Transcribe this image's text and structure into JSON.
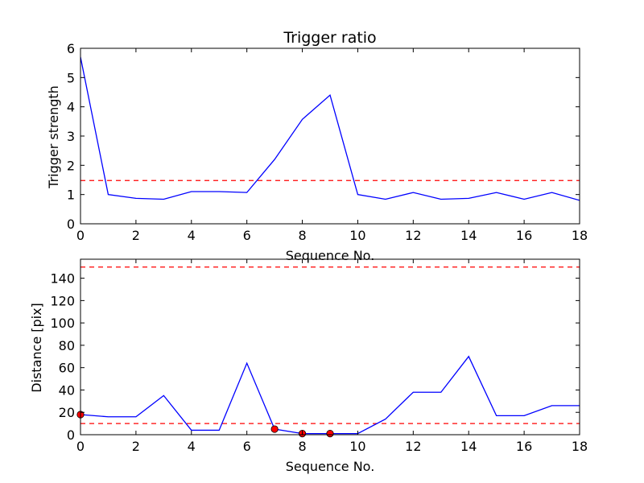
{
  "colors": {
    "series_line": "#0000ff",
    "threshold_line": "#ff0000",
    "marker_fill": "#ff0000",
    "marker_edge": "#000000",
    "axes": "#000000",
    "background": "#ffffff"
  },
  "chart_data": [
    {
      "type": "line",
      "title": "Trigger ratio",
      "xlabel": "Sequence No.",
      "ylabel": "Trigger strength",
      "xlim": [
        0,
        18
      ],
      "ylim": [
        0,
        6
      ],
      "xticks": [
        0,
        2,
        4,
        6,
        8,
        10,
        12,
        14,
        16,
        18
      ],
      "yticks": [
        0,
        1,
        2,
        3,
        4,
        5,
        6
      ],
      "grid": false,
      "series": [
        {
          "x": [
            0,
            1,
            2,
            3,
            4,
            5,
            6,
            7,
            8,
            9,
            10,
            11,
            12,
            13,
            14,
            15,
            16,
            17,
            18
          ],
          "values": [
            5.7,
            1.0,
            0.87,
            0.84,
            1.1,
            1.1,
            1.07,
            2.2,
            3.57,
            4.4,
            1.0,
            0.84,
            1.07,
            0.84,
            0.87,
            1.07,
            0.84,
            1.07,
            0.8
          ]
        }
      ],
      "hlines": [
        1.48
      ]
    },
    {
      "type": "line",
      "title": "",
      "xlabel": "Sequence No.",
      "ylabel": "Distance [pix]",
      "xlim": [
        0,
        18
      ],
      "ylim": [
        0,
        157
      ],
      "xticks": [
        0,
        2,
        4,
        6,
        8,
        10,
        12,
        14,
        16,
        18
      ],
      "yticks": [
        0,
        20,
        40,
        60,
        80,
        100,
        120,
        140
      ],
      "grid": false,
      "series": [
        {
          "x": [
            0,
            1,
            2,
            3,
            4,
            5,
            6,
            7,
            8,
            9,
            10,
            11,
            12,
            13,
            14,
            15,
            16,
            17,
            18
          ],
          "values": [
            18,
            16,
            16,
            35,
            4,
            4,
            64,
            5,
            1,
            1,
            1,
            14,
            38,
            38,
            70,
            17,
            17,
            26,
            26
          ]
        }
      ],
      "markers": {
        "x": [
          0,
          7,
          8,
          9
        ],
        "y": [
          18,
          5,
          1,
          1
        ]
      },
      "hlines": [
        10,
        150
      ]
    }
  ]
}
